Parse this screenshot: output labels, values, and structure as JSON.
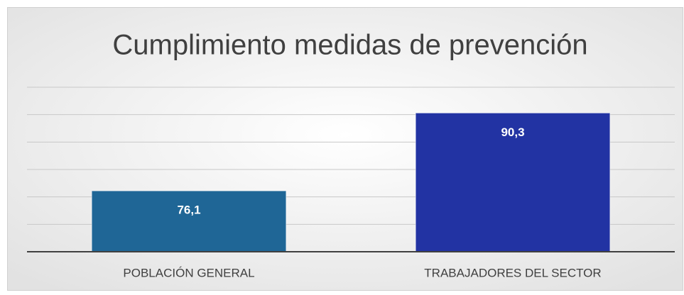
{
  "chart_data": {
    "type": "bar",
    "title": "Cumplimiento medidas de prevención",
    "categories": [
      "POBLACIÓN GENERAL",
      "TRABAJADORES DEL SECTOR"
    ],
    "values": [
      76.1,
      90.3
    ],
    "value_labels": [
      "76,1",
      "90,3"
    ],
    "colors": [
      "#1f6696",
      "#2233a3"
    ],
    "ylim": [
      65,
      95
    ],
    "yticks": [
      65,
      70,
      75,
      80,
      85,
      90,
      95
    ],
    "grid": true
  }
}
